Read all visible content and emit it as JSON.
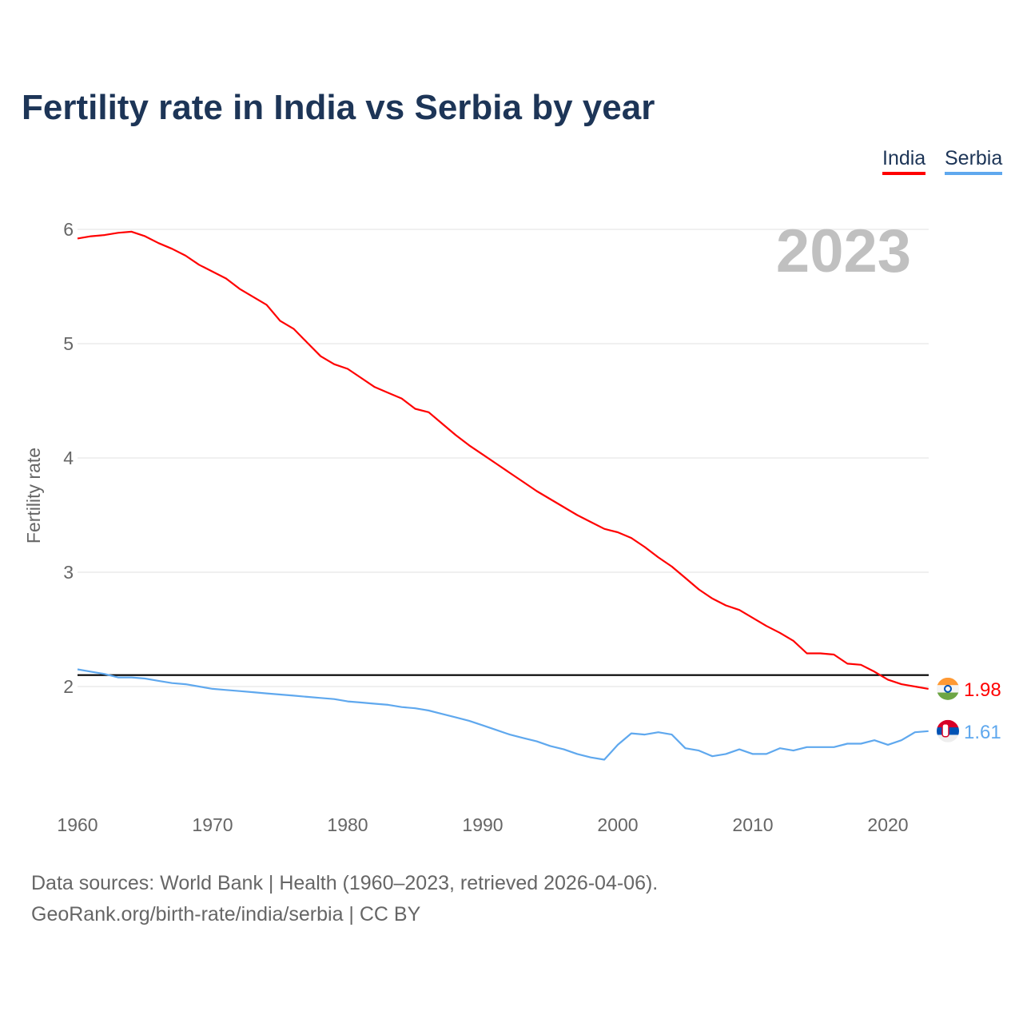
{
  "chart_data": {
    "type": "line",
    "title": "Fertility rate in India vs Serbia by year",
    "ylabel": "Fertility rate",
    "xlabel": "",
    "year_label": "2023",
    "ylim": [
      1.1,
      6.2
    ],
    "xlim": [
      1960,
      2023
    ],
    "yticks": [
      2,
      3,
      4,
      5,
      6
    ],
    "xticks": [
      1960,
      1970,
      1980,
      1990,
      2000,
      2010,
      2020
    ],
    "reference_line": 2.1,
    "grid": true,
    "legend_position": "top-right",
    "x": [
      1960,
      1961,
      1962,
      1963,
      1964,
      1965,
      1966,
      1967,
      1968,
      1969,
      1970,
      1971,
      1972,
      1973,
      1974,
      1975,
      1976,
      1977,
      1978,
      1979,
      1980,
      1981,
      1982,
      1983,
      1984,
      1985,
      1986,
      1987,
      1988,
      1989,
      1990,
      1991,
      1992,
      1993,
      1994,
      1995,
      1996,
      1997,
      1998,
      1999,
      2000,
      2001,
      2002,
      2003,
      2004,
      2005,
      2006,
      2007,
      2008,
      2009,
      2010,
      2011,
      2012,
      2013,
      2014,
      2015,
      2016,
      2017,
      2018,
      2019,
      2020,
      2021,
      2022,
      2023
    ],
    "series": [
      {
        "name": "India",
        "color": "#ff0000",
        "end_label": "1.98",
        "values": [
          5.92,
          5.94,
          5.95,
          5.97,
          5.98,
          5.94,
          5.88,
          5.83,
          5.77,
          5.69,
          5.63,
          5.57,
          5.48,
          5.41,
          5.34,
          5.2,
          5.13,
          5.01,
          4.89,
          4.82,
          4.78,
          4.7,
          4.62,
          4.57,
          4.52,
          4.43,
          4.4,
          4.3,
          4.2,
          4.11,
          4.03,
          3.95,
          3.87,
          3.79,
          3.71,
          3.64,
          3.57,
          3.5,
          3.44,
          3.38,
          3.35,
          3.3,
          3.22,
          3.13,
          3.05,
          2.95,
          2.85,
          2.77,
          2.71,
          2.67,
          2.6,
          2.53,
          2.47,
          2.4,
          2.29,
          2.29,
          2.28,
          2.2,
          2.19,
          2.13,
          2.06,
          2.02,
          2.0,
          1.98
        ]
      },
      {
        "name": "Serbia",
        "color": "#5fa8ee",
        "end_label": "1.61",
        "values": [
          2.15,
          2.13,
          2.11,
          2.08,
          2.08,
          2.07,
          2.05,
          2.03,
          2.02,
          2.0,
          1.98,
          1.97,
          1.96,
          1.95,
          1.94,
          1.93,
          1.92,
          1.91,
          1.9,
          1.89,
          1.87,
          1.86,
          1.85,
          1.84,
          1.82,
          1.81,
          1.79,
          1.76,
          1.73,
          1.7,
          1.66,
          1.62,
          1.58,
          1.55,
          1.52,
          1.48,
          1.45,
          1.41,
          1.38,
          1.36,
          1.49,
          1.59,
          1.58,
          1.6,
          1.58,
          1.46,
          1.44,
          1.39,
          1.41,
          1.45,
          1.41,
          1.41,
          1.46,
          1.44,
          1.47,
          1.47,
          1.47,
          1.5,
          1.5,
          1.53,
          1.49,
          1.53,
          1.6,
          1.61
        ]
      }
    ]
  },
  "footer": {
    "line1": "Data sources: World Bank | Health (1960–2023, retrieved 2026-04-06).",
    "line2": "GeoRank.org/birth-rate/india/serbia | CC BY"
  }
}
